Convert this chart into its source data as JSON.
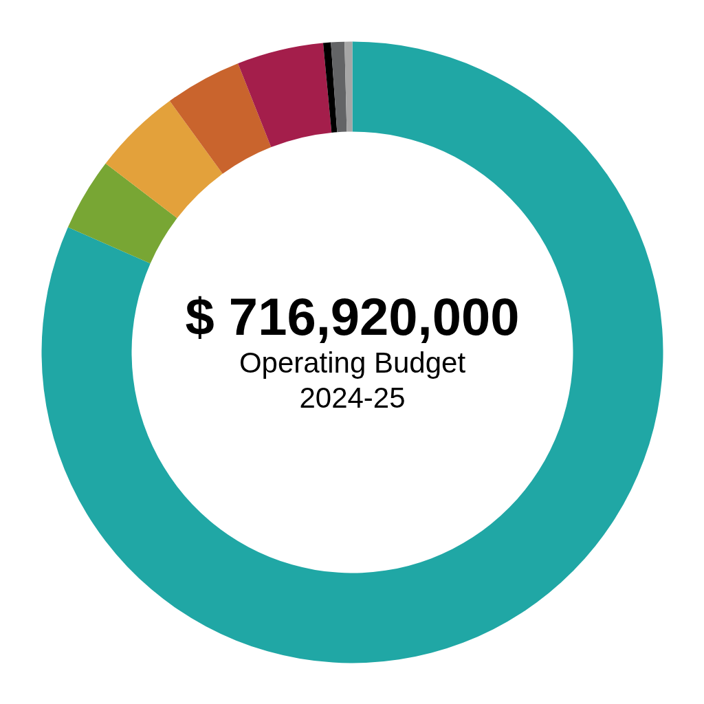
{
  "chart_data": {
    "type": "donut",
    "title": "$ 716,920,000",
    "subtitle": "Operating Budget\n2024-25",
    "categories": [
      null,
      null,
      null,
      null,
      null,
      null,
      null,
      null
    ],
    "values": [
      81.6,
      3.8,
      4.6,
      4.0,
      4.5,
      0.4,
      0.7,
      0.4
    ],
    "colors": [
      "#20a7a5",
      "#78a634",
      "#e3a13b",
      "#c9642d",
      "#a41e4b",
      "#000000",
      "#636466",
      "#a6a6a6"
    ]
  }
}
